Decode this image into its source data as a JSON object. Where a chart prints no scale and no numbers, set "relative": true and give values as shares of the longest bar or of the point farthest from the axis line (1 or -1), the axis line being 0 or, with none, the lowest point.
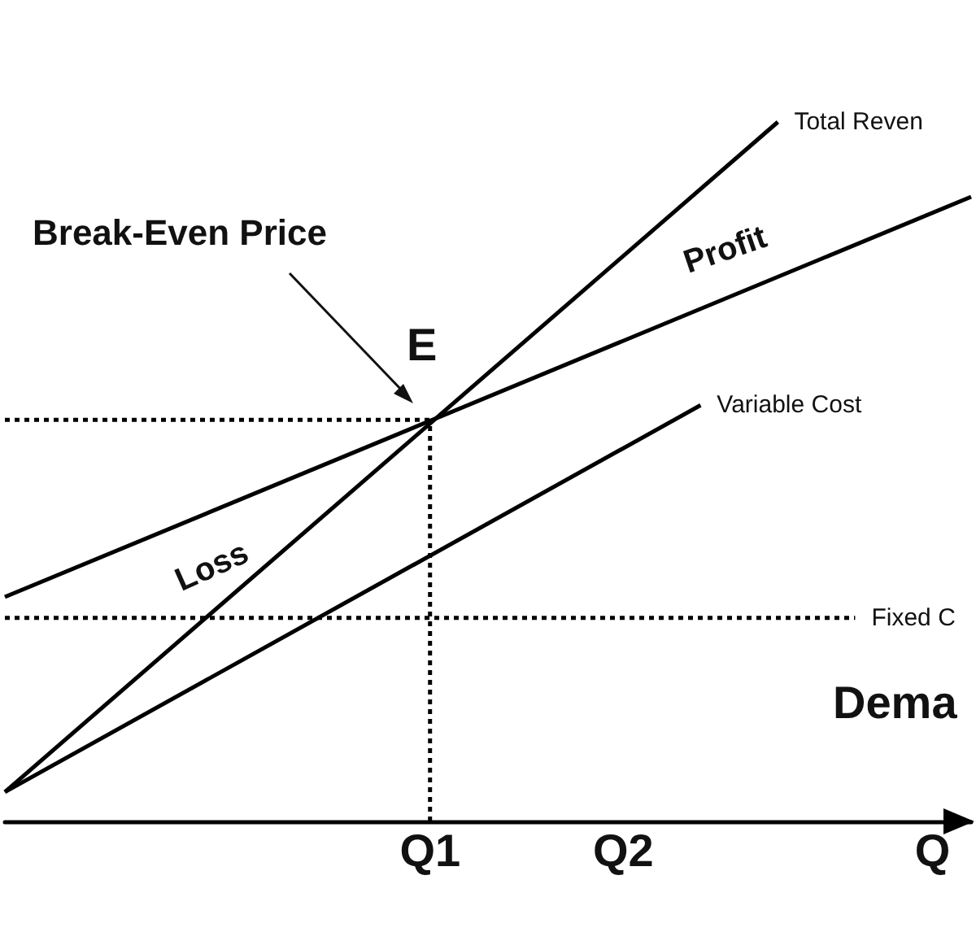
{
  "chart_data": {
    "type": "line",
    "relative": true,
    "legend": false,
    "grid": false,
    "marker": "none",
    "categories": [
      null,
      null,
      null,
      null,
      null,
      null,
      null,
      null,
      null,
      null,
      null,
      "Q1",
      null,
      null,
      null,
      null,
      "Q2",
      null,
      null,
      null,
      null,
      null,
      null,
      null,
      "Q",
      null
    ],
    "series": [
      {
        "name": "Total Reven",
        "color": "#000000",
        "values": [
          0.042,
          null,
          null,
          null,
          null,
          null,
          null,
          null,
          null,
          null,
          null,
          null,
          null,
          null,
          null,
          null,
          null,
          null,
          null,
          null,
          1.0,
          null,
          null,
          null,
          null,
          null
        ]
      },
      {
        "color": "#000000",
        "values": [
          0.321,
          null,
          null,
          null,
          null,
          null,
          null,
          null,
          null,
          null,
          null,
          null,
          null,
          null,
          null,
          null,
          null,
          null,
          null,
          null,
          null,
          null,
          null,
          null,
          null,
          0.893
        ]
      },
      {
        "name": "Variable Cost",
        "color": "#000000",
        "values": [
          0.042,
          null,
          null,
          null,
          null,
          null,
          null,
          null,
          null,
          null,
          null,
          null,
          null,
          null,
          null,
          null,
          null,
          null,
          0.595,
          null,
          null,
          null,
          null,
          null,
          null,
          null
        ]
      },
      {
        "name": "Fixed C",
        "color": "#000000",
        "line_style": "dotted",
        "values": [
          0.291,
          null,
          null,
          null,
          null,
          null,
          null,
          null,
          null,
          null,
          null,
          null,
          null,
          null,
          null,
          null,
          null,
          null,
          null,
          null,
          null,
          null,
          0.291,
          null,
          null,
          null
        ]
      },
      {
        "color": "#000000",
        "line_style": "dotted",
        "values": [
          0.574,
          null,
          null,
          null,
          null,
          null,
          null,
          null,
          null,
          null,
          null,
          0.574,
          null,
          null,
          null,
          null,
          null,
          null,
          null,
          null,
          null,
          null,
          null,
          null,
          null,
          null
        ]
      },
      {
        "color": "#000000",
        "line_style": "dotted",
        "x": [
          "Q1",
          "Q1"
        ],
        "values": [
          0,
          0.574
        ]
      }
    ],
    "annotations": [
      "Break-Even Price",
      "E",
      "Profit",
      "Loss",
      "Dema"
    ]
  }
}
